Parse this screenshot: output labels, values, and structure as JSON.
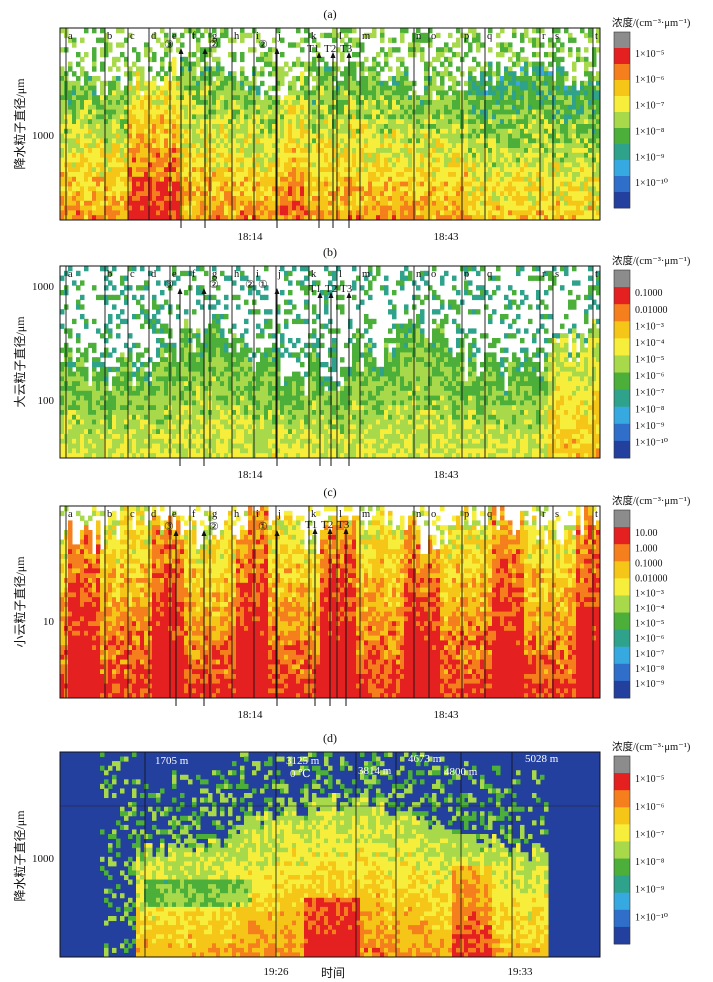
{
  "chart_data": [
    {
      "panel": "(a)",
      "type": "heatmap",
      "ylabel": "降水粒子直径/μm",
      "ytick": "1000",
      "xticks": [
        "18:14",
        "18:43"
      ],
      "segment_labels": [
        "a",
        "b",
        "c",
        "d",
        "e",
        "f",
        "g",
        "h",
        "i",
        "j",
        "k",
        "l",
        "m",
        "n",
        "o",
        "p",
        "q",
        "r",
        "s",
        "t"
      ],
      "annotations": [
        "③",
        "②",
        "②",
        "T1",
        "T2",
        "T3"
      ],
      "colorbar_title": "浓度/(cm⁻³·μm⁻¹)",
      "colorbar_labels": [
        "1×10⁻⁵",
        "1×10⁻⁶",
        "1×10⁻⁷",
        "1×10⁻⁸",
        "1×10⁻⁹",
        "1×10⁻¹⁰"
      ],
      "colorbar_colors": [
        "#8c8c8c",
        "#e52020",
        "#f57f1c",
        "#f5c518",
        "#f6ee3a",
        "#a7d94b",
        "#4caf3a",
        "#2fa28c",
        "#36a9e0",
        "#2f6fc9",
        "#24409e"
      ]
    },
    {
      "panel": "(b)",
      "type": "heatmap",
      "ylabel": "大云粒子直径/μm",
      "yticks": [
        "1000",
        "100"
      ],
      "xticks": [
        "18:14",
        "18:43"
      ],
      "segment_labels": [
        "a",
        "b",
        "c",
        "d",
        "e",
        "f",
        "g",
        "h",
        "i",
        "j",
        "k",
        "l",
        "m",
        "n",
        "o",
        "p",
        "q",
        "r",
        "s",
        "t"
      ],
      "annotations": [
        "③",
        "②",
        "②",
        "①",
        "T1",
        "T2",
        "T3"
      ],
      "colorbar_title": "浓度/(cm⁻³·μm⁻¹)",
      "colorbar_labels": [
        "0.1000",
        "0.01000",
        "1×10⁻³",
        "1×10⁻⁴",
        "1×10⁻⁵",
        "1×10⁻⁶",
        "1×10⁻⁷",
        "1×10⁻⁸",
        "1×10⁻⁹",
        "1×10⁻¹⁰"
      ],
      "colorbar_colors": [
        "#8c8c8c",
        "#e52020",
        "#f57f1c",
        "#f5c518",
        "#f6ee3a",
        "#a7d94b",
        "#4caf3a",
        "#2fa28c",
        "#36a9e0",
        "#2f6fc9",
        "#24409e"
      ]
    },
    {
      "panel": "(c)",
      "type": "heatmap",
      "ylabel": "小云粒子直径/μm",
      "ytick": "10",
      "xticks": [
        "18:14",
        "18:43"
      ],
      "segment_labels": [
        "a",
        "b",
        "c",
        "d",
        "e",
        "f",
        "g",
        "h",
        "i",
        "j",
        "k",
        "l",
        "m",
        "n",
        "o",
        "p",
        "q",
        "r",
        "s",
        "t"
      ],
      "annotations": [
        "③",
        "②",
        "①",
        "T1",
        "T2",
        "T3"
      ],
      "colorbar_title": "浓度/(cm⁻³·μm⁻¹)",
      "colorbar_labels": [
        "10.00",
        "1.000",
        "0.1000",
        "0.01000",
        "1×10⁻³",
        "1×10⁻⁴",
        "1×10⁻⁵",
        "1×10⁻⁶",
        "1×10⁻⁷",
        "1×10⁻⁸",
        "1×10⁻⁹"
      ],
      "colorbar_colors": [
        "#8c8c8c",
        "#e52020",
        "#f57f1c",
        "#f5c518",
        "#f6ee3a",
        "#a7d94b",
        "#4caf3a",
        "#2fa28c",
        "#36a9e0",
        "#2f6fc9",
        "#24409e"
      ]
    },
    {
      "panel": "(d)",
      "type": "heatmap",
      "ylabel": "降水粒子直径/μm",
      "ytick": "1000",
      "xticks": [
        "19:26",
        "19:33"
      ],
      "xlabel": "时间",
      "altitude_labels": [
        "1705 m",
        "3125 m",
        "0 ℃",
        "3814 m",
        "4673 m",
        "4800 m",
        "5028 m"
      ],
      "colorbar_title": "浓度/(cm⁻³·μm⁻¹)",
      "colorbar_labels": [
        "1×10⁻⁵",
        "1×10⁻⁶",
        "1×10⁻⁷",
        "1×10⁻⁸",
        "1×10⁻⁹",
        "1×10⁻¹⁰"
      ],
      "colorbar_colors": [
        "#8c8c8c",
        "#e52020",
        "#f57f1c",
        "#f5c518",
        "#f6ee3a",
        "#a7d94b",
        "#4caf3a",
        "#2fa28c",
        "#36a9e0",
        "#2f6fc9",
        "#24409e"
      ]
    }
  ]
}
